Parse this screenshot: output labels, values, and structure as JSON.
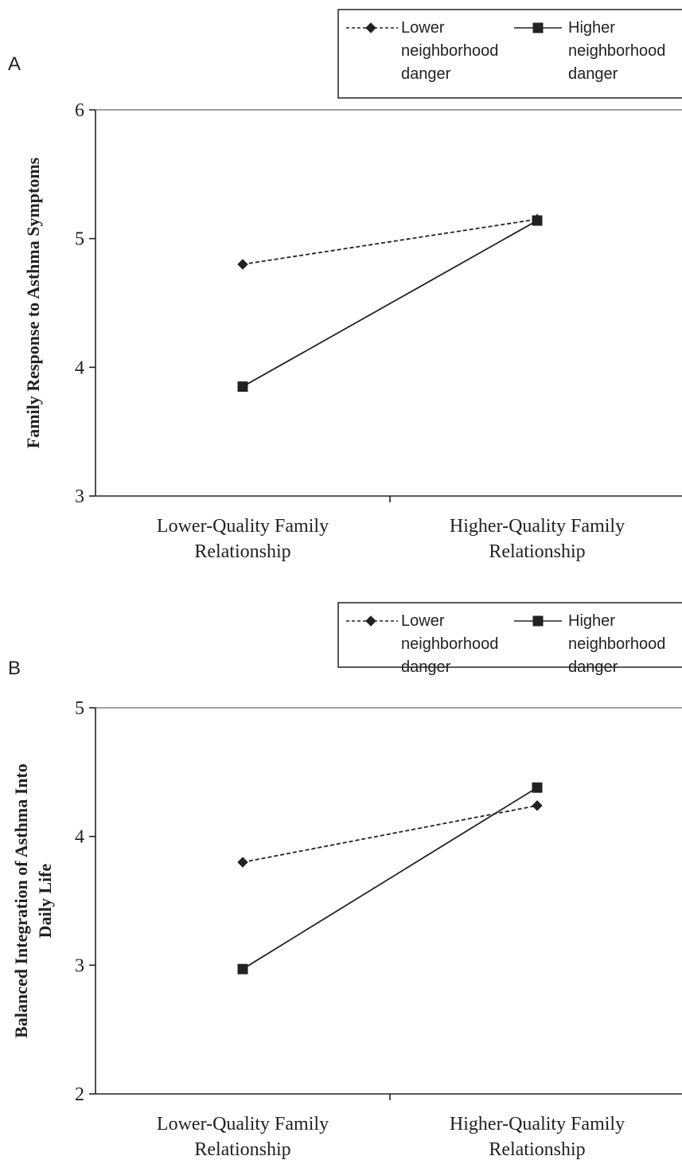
{
  "chart_data": [
    {
      "type": "line",
      "panel_label": "A",
      "title": "",
      "xlabel": "",
      "ylabel": "Family Response to Asthma Symptoms",
      "categories": [
        [
          "Lower-Quality Family",
          "Relationship"
        ],
        [
          "Higher-Quality Family",
          "Relationship"
        ]
      ],
      "ylim": [
        3,
        6
      ],
      "yticks": [
        "3",
        "4",
        "5",
        "6"
      ],
      "grid": false,
      "legend_position": "top-right",
      "series": [
        {
          "name": [
            "Lower",
            "neighborhood",
            "danger"
          ],
          "marker": "diamond",
          "line_style": "dashed",
          "color": "#222222",
          "values": [
            4.8,
            5.15
          ]
        },
        {
          "name": [
            "Higher",
            "neighborhood",
            "danger"
          ],
          "marker": "square",
          "line_style": "solid",
          "color": "#222222",
          "values": [
            3.85,
            5.14
          ]
        }
      ]
    },
    {
      "type": "line",
      "panel_label": "B",
      "title": "",
      "xlabel": "",
      "ylabel": [
        "Balanced Integration of Asthma Into",
        "Daily Life"
      ],
      "categories": [
        [
          "Lower-Quality Family",
          "Relationship"
        ],
        [
          "Higher-Quality Family",
          "Relationship"
        ]
      ],
      "ylim": [
        2,
        5
      ],
      "yticks": [
        "2",
        "3",
        "4",
        "5"
      ],
      "grid": false,
      "legend_position": "top-right",
      "series": [
        {
          "name": [
            "Lower",
            "neighborhood",
            "danger"
          ],
          "marker": "diamond",
          "line_style": "dashed",
          "color": "#222222",
          "values": [
            3.8,
            4.24
          ]
        },
        {
          "name": [
            "Higher",
            "neighborhood",
            "danger"
          ],
          "marker": "square",
          "line_style": "solid",
          "color": "#222222",
          "values": [
            2.97,
            4.38
          ]
        }
      ]
    }
  ]
}
